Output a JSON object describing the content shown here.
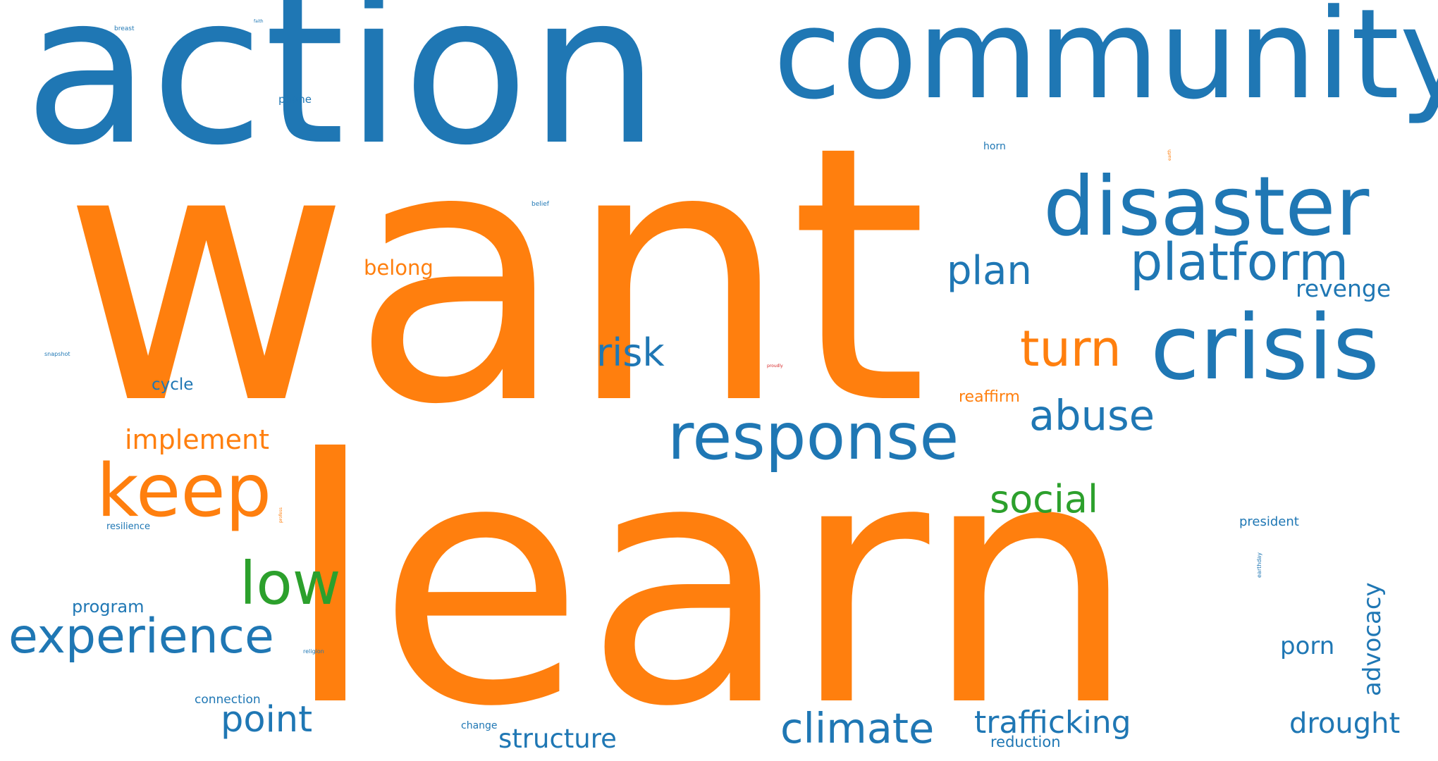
{
  "palette": {
    "blue": "#1f77b4",
    "orange": "#ff7f0e",
    "green": "#2ca02c",
    "red": "#d62728"
  },
  "words": [
    {
      "text": "want",
      "color": "orange"
    },
    {
      "text": "learn",
      "color": "orange"
    },
    {
      "text": "action",
      "color": "blue"
    },
    {
      "text": "community",
      "color": "blue"
    },
    {
      "text": "disaster",
      "color": "blue"
    },
    {
      "text": "crisis",
      "color": "blue"
    },
    {
      "text": "platform",
      "color": "blue"
    },
    {
      "text": "response",
      "color": "blue"
    },
    {
      "text": "keep",
      "color": "orange"
    },
    {
      "text": "turn",
      "color": "orange"
    },
    {
      "text": "plan",
      "color": "blue"
    },
    {
      "text": "experience",
      "color": "blue"
    },
    {
      "text": "low",
      "color": "green"
    },
    {
      "text": "abuse",
      "color": "blue"
    },
    {
      "text": "climate",
      "color": "blue"
    },
    {
      "text": "risk",
      "color": "blue"
    },
    {
      "text": "social",
      "color": "green"
    },
    {
      "text": "point",
      "color": "blue"
    },
    {
      "text": "trafficking",
      "color": "blue"
    },
    {
      "text": "implement",
      "color": "orange"
    },
    {
      "text": "drought",
      "color": "blue"
    },
    {
      "text": "structure",
      "color": "blue"
    },
    {
      "text": "belong",
      "color": "orange"
    },
    {
      "text": "revenge",
      "color": "blue"
    },
    {
      "text": "advocacy",
      "color": "blue"
    },
    {
      "text": "porn",
      "color": "blue"
    },
    {
      "text": "reaffirm",
      "color": "orange"
    },
    {
      "text": "program",
      "color": "blue"
    },
    {
      "text": "cycle",
      "color": "blue"
    },
    {
      "text": "reduction",
      "color": "blue"
    },
    {
      "text": "president",
      "color": "blue"
    },
    {
      "text": "connection",
      "color": "blue"
    },
    {
      "text": "phone",
      "color": "blue"
    },
    {
      "text": "horn",
      "color": "blue"
    },
    {
      "text": "change",
      "color": "blue"
    },
    {
      "text": "resilience",
      "color": "blue"
    },
    {
      "text": "breast",
      "color": "blue"
    },
    {
      "text": "belief",
      "color": "blue"
    },
    {
      "text": "snapshot",
      "color": "blue"
    },
    {
      "text": "religion",
      "color": "blue"
    },
    {
      "text": "earthday",
      "color": "blue"
    },
    {
      "text": "faith",
      "color": "blue"
    },
    {
      "text": "proudly",
      "color": "red"
    },
    {
      "text": "profess",
      "color": "orange"
    },
    {
      "text": "earth",
      "color": "orange"
    }
  ]
}
